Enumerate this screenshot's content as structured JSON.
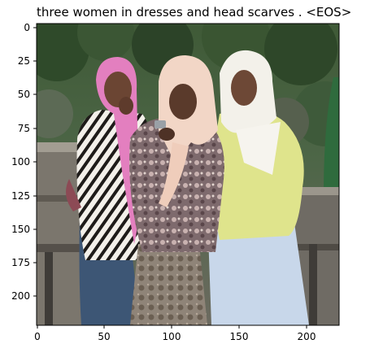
{
  "title": "three women in dresses and head scarves . <EOS>",
  "axes": {
    "x_ticks": [
      "0",
      "50",
      "100",
      "150",
      "200"
    ],
    "y_ticks": [
      "0",
      "25",
      "50",
      "75",
      "100",
      "125",
      "150",
      "175",
      "200"
    ]
  },
  "scene": {
    "background": "trees-and-wooden-fence",
    "people": [
      {
        "name": "woman-left",
        "scarf_color": "#e37fbf",
        "top": "zebra-print"
      },
      {
        "name": "woman-middle",
        "scarf_color": "#f2d6c6",
        "top": "paisley-print"
      },
      {
        "name": "woman-right",
        "scarf_color": "#f3f1ea",
        "top": "#dfe48c"
      }
    ]
  }
}
